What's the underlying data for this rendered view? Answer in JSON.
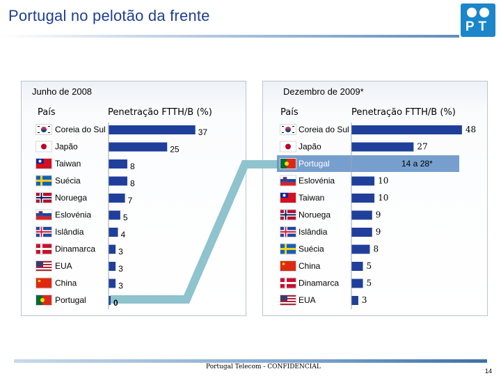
{
  "title": "Portugal no pelotão da frente",
  "logo": {
    "letters": "PT"
  },
  "footer": {
    "confidential": "Portugal Telecom - CONFIDENCIAL",
    "page": "14"
  },
  "left": {
    "period": "Junho de 2008",
    "col_country": "País",
    "col_metric": "Penetração FTTH/B (%)"
  },
  "right": {
    "period": "Dezembro de 2009*",
    "col_country": "País",
    "col_metric": "Penetração FTTH/B (%)"
  },
  "colors": {
    "bar": "#1f3f9a",
    "highlight": "#5f8ec4",
    "connector": "#8fc3cd",
    "title": "#1d3f8f"
  },
  "chart_data": [
    {
      "type": "bar",
      "title": "Junho de 2008",
      "categories": [
        "Coreia do Sul",
        "Japão",
        "Taiwan",
        "Suécia",
        "Noruega",
        "Eslovénia",
        "Islândia",
        "Dinamarca",
        "EUA",
        "China",
        "Portugal"
      ],
      "values": [
        37,
        25,
        8,
        8,
        7,
        5,
        4,
        3,
        3,
        3,
        0
      ],
      "value_labels": [
        "37",
        "25",
        "8",
        "8",
        "7",
        "5",
        "4",
        "3",
        "3",
        "3",
        "0"
      ],
      "flags": [
        "flag-south-korea",
        "flag-japan",
        "flag-taiwan",
        "flag-sweden",
        "flag-norway",
        "flag-slovenia",
        "flag-iceland",
        "flag-denmark",
        "flag-usa",
        "flag-china",
        "flag-portugal"
      ],
      "highlight": "Portugal"
    },
    {
      "type": "bar",
      "title": "Dezembro de 2009*",
      "categories": [
        "Coreia do Sul",
        "Japão",
        "Portugal",
        "Eslovénia",
        "Taiwan",
        "Noruega",
        "Islândia",
        "Suécia",
        "China",
        "Dinamarca",
        "EUA"
      ],
      "values": [
        48,
        27,
        null,
        10,
        10,
        9,
        9,
        8,
        5,
        5,
        3
      ],
      "value_labels": [
        "48",
        "27",
        "14 a 28*",
        "10",
        "10",
        "9",
        "9",
        "8",
        "5",
        "5",
        "3"
      ],
      "flags": [
        "flag-south-korea",
        "flag-japan",
        "flag-portugal",
        "flag-slovenia",
        "flag-taiwan",
        "flag-norway",
        "flag-iceland",
        "flag-sweden",
        "flag-china",
        "flag-denmark",
        "flag-usa"
      ],
      "highlight": "Portugal"
    }
  ]
}
